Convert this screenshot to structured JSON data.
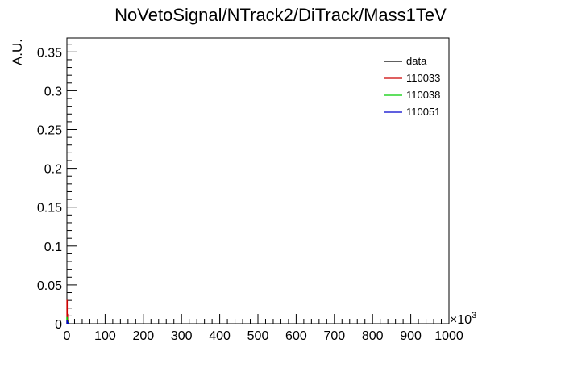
{
  "chart_data": {
    "type": "line",
    "title": "NoVetoSignal/NTrack2/DiTrack/Mass1TeV",
    "xlabel": "",
    "ylabel": "A.U.",
    "x_multiplier": "×10",
    "x_multiplier_exp": "3",
    "xlim": [
      0,
      1000
    ],
    "ylim": [
      0,
      0.368
    ],
    "x_ticks": [
      0,
      100,
      200,
      300,
      400,
      500,
      600,
      700,
      800,
      900,
      1000
    ],
    "x_tick_labels": [
      "0",
      "100",
      "200",
      "300",
      "400",
      "500",
      "600",
      "700",
      "800",
      "900",
      "1000"
    ],
    "y_ticks": [
      0,
      0.05,
      0.1,
      0.15,
      0.2,
      0.25,
      0.3,
      0.35
    ],
    "y_tick_labels": [
      "0",
      "0.05",
      "0.1",
      "0.15",
      "0.2",
      "0.25",
      "0.3",
      "0.35"
    ],
    "legend_position": "top-right",
    "grid": false,
    "series": [
      {
        "name": "data",
        "color": "#000000",
        "x": [],
        "y": []
      },
      {
        "name": "110033",
        "color": "#cc0000",
        "x": [
          0,
          1,
          2,
          3
        ],
        "y": [
          0.03,
          0.012,
          0.004,
          0.001
        ]
      },
      {
        "name": "110038",
        "color": "#00cc00",
        "x": [
          0,
          1,
          2,
          3
        ],
        "y": [
          0.008,
          0.004,
          0.002,
          0.0005
        ]
      },
      {
        "name": "110051",
        "color": "#0000cc",
        "x": [
          0,
          1,
          2,
          3
        ],
        "y": [
          0.004,
          0.002,
          0.001,
          0.0003
        ]
      }
    ]
  }
}
